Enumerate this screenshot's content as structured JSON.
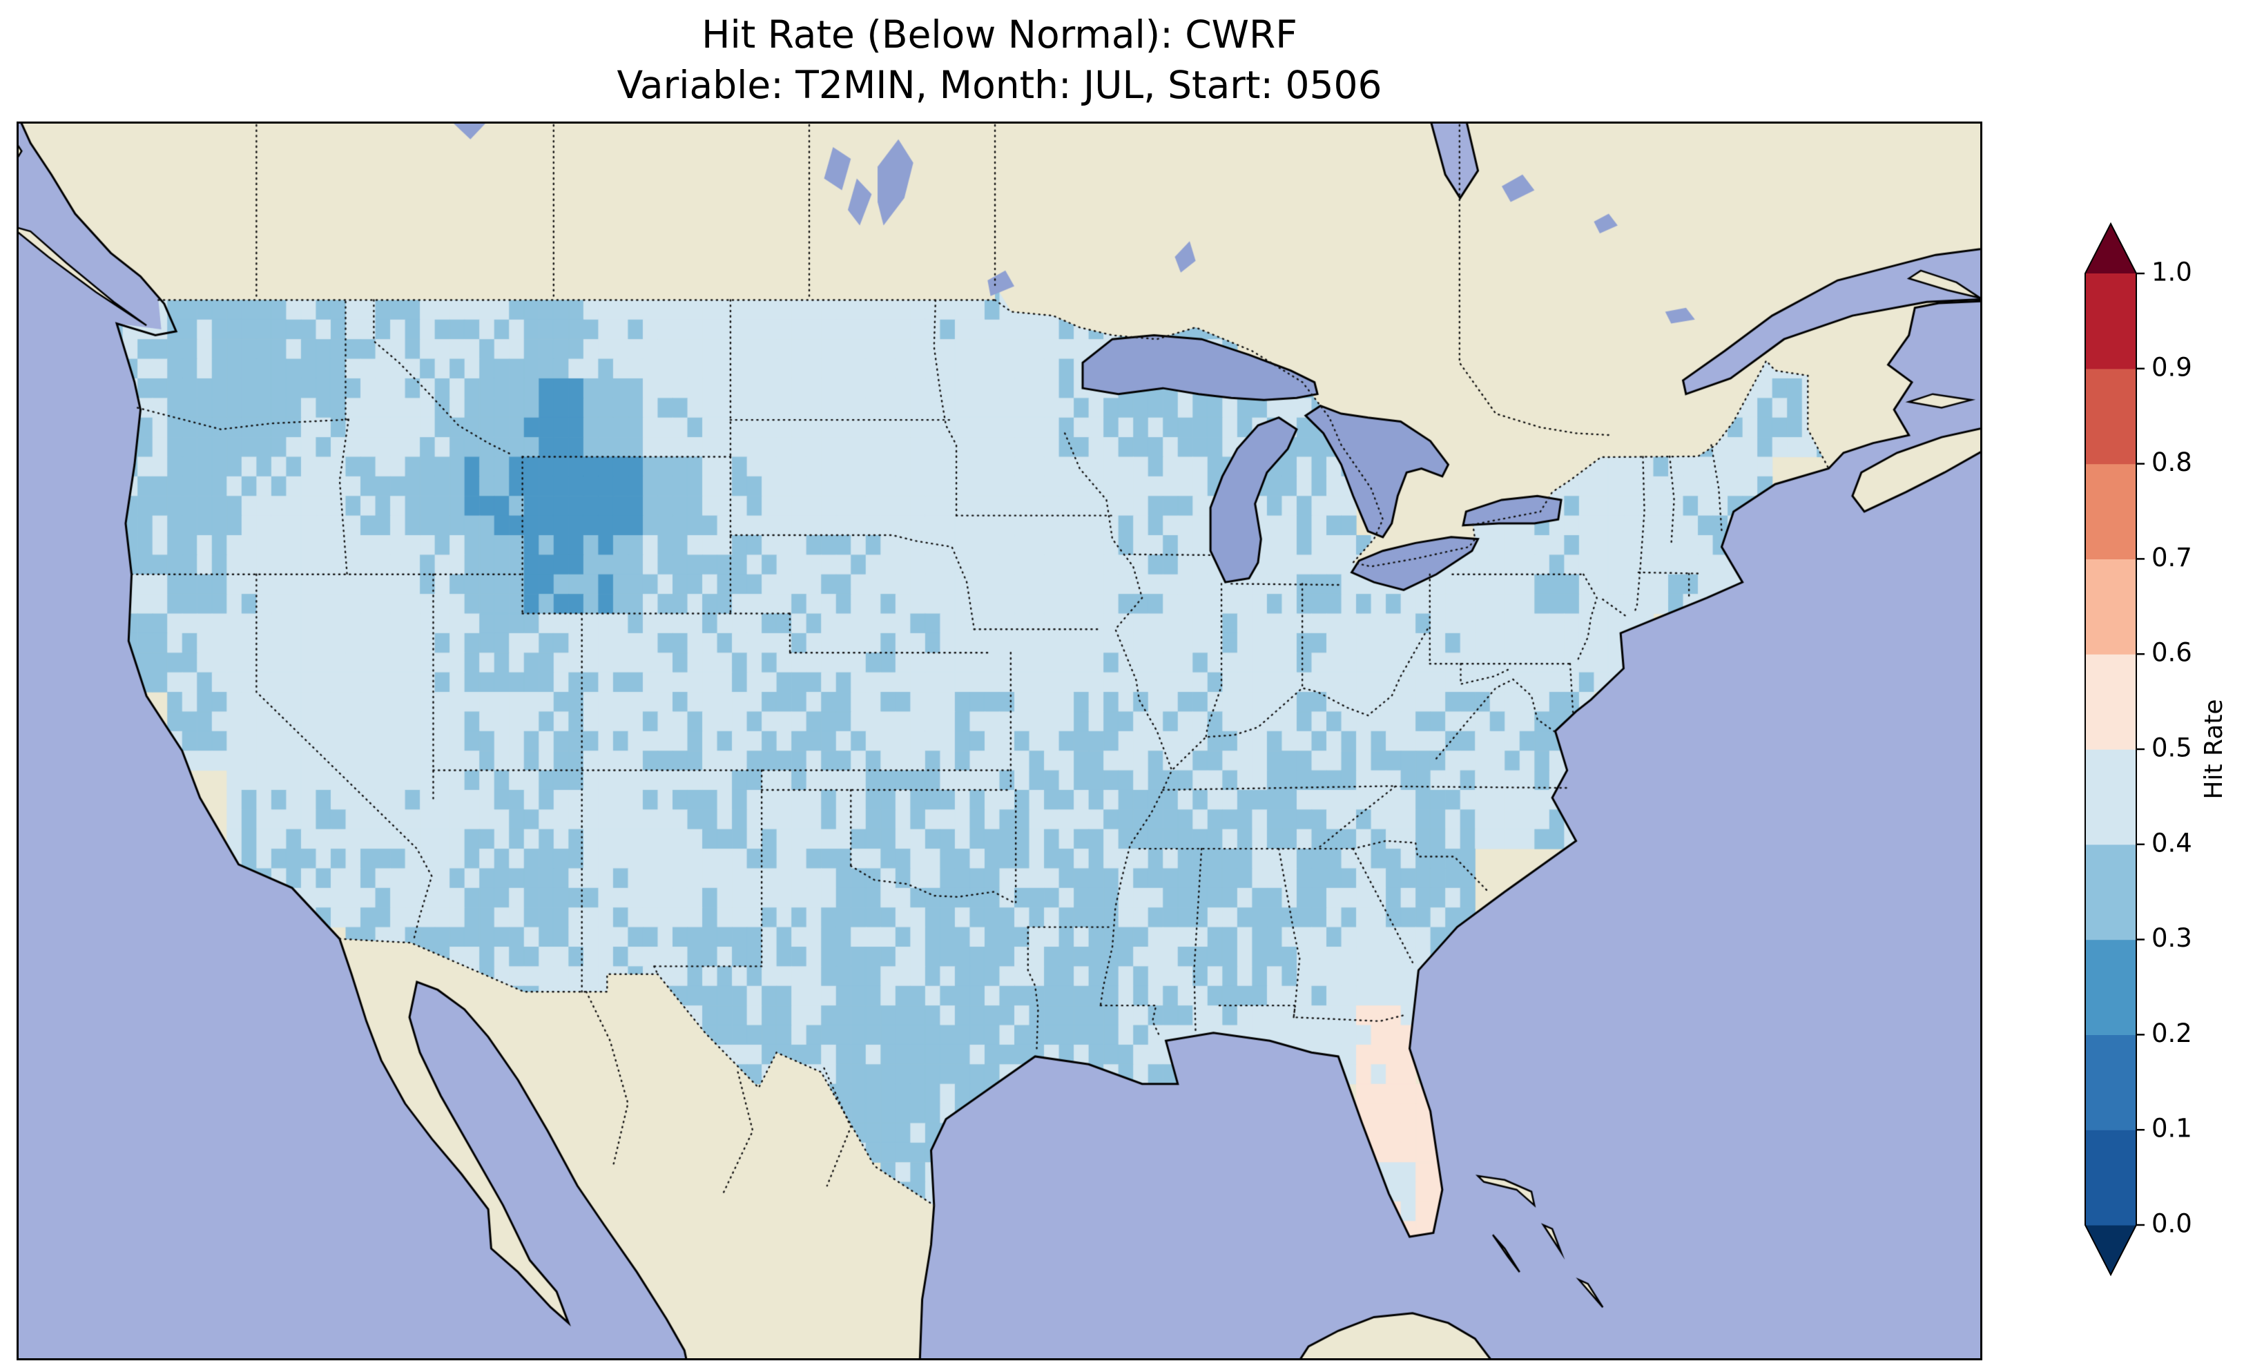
{
  "figure": {
    "title_line1": "Hit Rate (Below Normal): CWRF",
    "title_line2": "Variable: T2MIN, Month: JUL, Start: 0506",
    "background_color": "#ffffff"
  },
  "map": {
    "ocean_color": "#a3afdc",
    "land_color": "#ece8d2",
    "lake_color": "#8fa0d2",
    "coastline_color": "#000000",
    "border_line_style": "dotted"
  },
  "colorbar": {
    "label": "Hit Rate",
    "ticks": [
      "0.0",
      "0.1",
      "0.2",
      "0.3",
      "0.4",
      "0.5",
      "0.6",
      "0.7",
      "0.8",
      "0.9",
      "1.0"
    ],
    "bin_colors": [
      "#1c5a9e",
      "#3075b4",
      "#4a97c6",
      "#8fc2dd",
      "#d3e6f0",
      "#fbe5d8",
      "#f9b99c",
      "#ea8a6a",
      "#d25849",
      "#b51f2e"
    ],
    "under_color": "#053061",
    "over_color": "#67001f"
  },
  "chart_data": {
    "type": "heatmap",
    "title": "Hit Rate (Below Normal): CWRF",
    "subtitle": "Variable: T2MIN, Month: JUL, Start: 0506",
    "model": "CWRF",
    "variable": "T2MIN",
    "month": "JUL",
    "start": "0506",
    "metric": "Hit Rate (Below Normal)",
    "colorbar_label": "Hit Rate",
    "levels": [
      0.0,
      0.1,
      0.2,
      0.3,
      0.4,
      0.5,
      0.6,
      0.7,
      0.8,
      0.9,
      1.0
    ],
    "colorbar_extend": "both",
    "grid": {
      "lon_centers_start": -124,
      "lon_step": 2,
      "ncols": 29,
      "lat_centers_start": 48,
      "lat_step": -2,
      "nrows": 12,
      "values": [
        [
          0.42,
          0.38,
          0.35,
          0.38,
          0.42,
          0.4,
          0.42,
          0.38,
          0.42,
          0.44,
          0.46,
          0.46,
          0.44,
          0.46,
          0.42,
          0.44,
          0.42,
          0.4,
          0.38,
          null,
          null,
          null,
          null,
          null,
          null,
          null,
          null,
          0.4,
          0.42
        ],
        [
          0.4,
          0.36,
          0.36,
          0.4,
          0.42,
          0.4,
          0.34,
          0.28,
          0.36,
          0.42,
          0.44,
          0.46,
          0.46,
          0.44,
          0.44,
          0.46,
          0.42,
          0.4,
          0.38,
          0.4,
          0.38,
          null,
          null,
          null,
          null,
          0.42,
          0.4,
          0.42,
          0.4
        ],
        [
          0.38,
          0.36,
          0.4,
          0.42,
          0.4,
          0.36,
          0.3,
          0.25,
          0.26,
          0.36,
          0.42,
          0.44,
          0.46,
          0.46,
          0.44,
          0.46,
          0.44,
          0.42,
          0.4,
          0.38,
          0.4,
          null,
          0.42,
          0.44,
          0.42,
          0.44,
          0.42,
          0.42,
          null
        ],
        [
          0.4,
          0.38,
          0.42,
          0.46,
          0.44,
          0.42,
          0.36,
          0.28,
          0.32,
          0.38,
          0.4,
          0.42,
          0.4,
          0.42,
          0.44,
          0.46,
          0.44,
          0.42,
          0.44,
          0.42,
          0.4,
          0.42,
          0.44,
          0.44,
          0.42,
          0.44,
          0.42,
          0.4,
          null
        ],
        [
          0.38,
          0.42,
          0.46,
          0.46,
          0.44,
          0.42,
          0.4,
          0.4,
          0.42,
          0.4,
          0.42,
          0.4,
          0.42,
          0.4,
          0.44,
          0.44,
          0.42,
          0.44,
          0.42,
          0.44,
          0.42,
          0.44,
          0.42,
          0.44,
          0.42,
          0.44,
          null,
          null,
          null
        ],
        [
          null,
          0.4,
          0.44,
          0.46,
          0.44,
          0.44,
          0.42,
          0.4,
          0.42,
          0.4,
          0.42,
          0.4,
          0.4,
          0.42,
          0.4,
          0.42,
          0.4,
          0.42,
          0.4,
          0.42,
          0.4,
          0.42,
          0.4,
          0.42,
          0.4,
          null,
          null,
          null,
          null
        ],
        [
          null,
          null,
          0.42,
          0.42,
          0.44,
          0.42,
          0.4,
          0.42,
          0.44,
          0.42,
          0.4,
          0.42,
          0.4,
          0.38,
          0.4,
          0.38,
          0.4,
          0.38,
          0.4,
          0.38,
          0.4,
          0.42,
          0.4,
          0.42,
          0.4,
          null,
          null,
          null,
          null
        ],
        [
          null,
          null,
          0.4,
          0.42,
          0.4,
          0.42,
          0.4,
          0.38,
          0.42,
          0.44,
          0.42,
          0.4,
          0.38,
          0.4,
          0.38,
          0.4,
          0.38,
          0.4,
          0.38,
          0.4,
          0.38,
          0.4,
          0.38,
          null,
          null,
          null,
          null,
          null,
          null
        ],
        [
          null,
          null,
          null,
          null,
          0.4,
          0.4,
          0.4,
          0.42,
          0.42,
          0.4,
          0.38,
          0.4,
          0.38,
          0.4,
          0.38,
          0.4,
          0.38,
          0.4,
          0.38,
          0.4,
          0.42,
          0.44,
          0.42,
          null,
          null,
          null,
          null,
          null,
          null
        ],
        [
          null,
          null,
          null,
          null,
          null,
          null,
          null,
          null,
          null,
          0.4,
          0.38,
          0.38,
          0.38,
          0.36,
          0.38,
          0.4,
          0.38,
          0.4,
          0.38,
          0.42,
          0.46,
          0.52,
          null,
          null,
          null,
          null,
          null,
          null,
          null
        ],
        [
          null,
          null,
          null,
          null,
          null,
          null,
          null,
          null,
          null,
          null,
          null,
          null,
          0.38,
          0.38,
          0.4,
          null,
          null,
          null,
          null,
          null,
          null,
          0.55,
          0.55,
          null,
          null,
          null,
          null,
          null,
          null
        ],
        [
          null,
          null,
          null,
          null,
          null,
          null,
          null,
          null,
          null,
          null,
          null,
          null,
          null,
          0.4,
          null,
          null,
          null,
          null,
          null,
          null,
          null,
          0.52,
          0.55,
          null,
          null,
          null,
          null,
          null,
          null
        ]
      ]
    }
  }
}
